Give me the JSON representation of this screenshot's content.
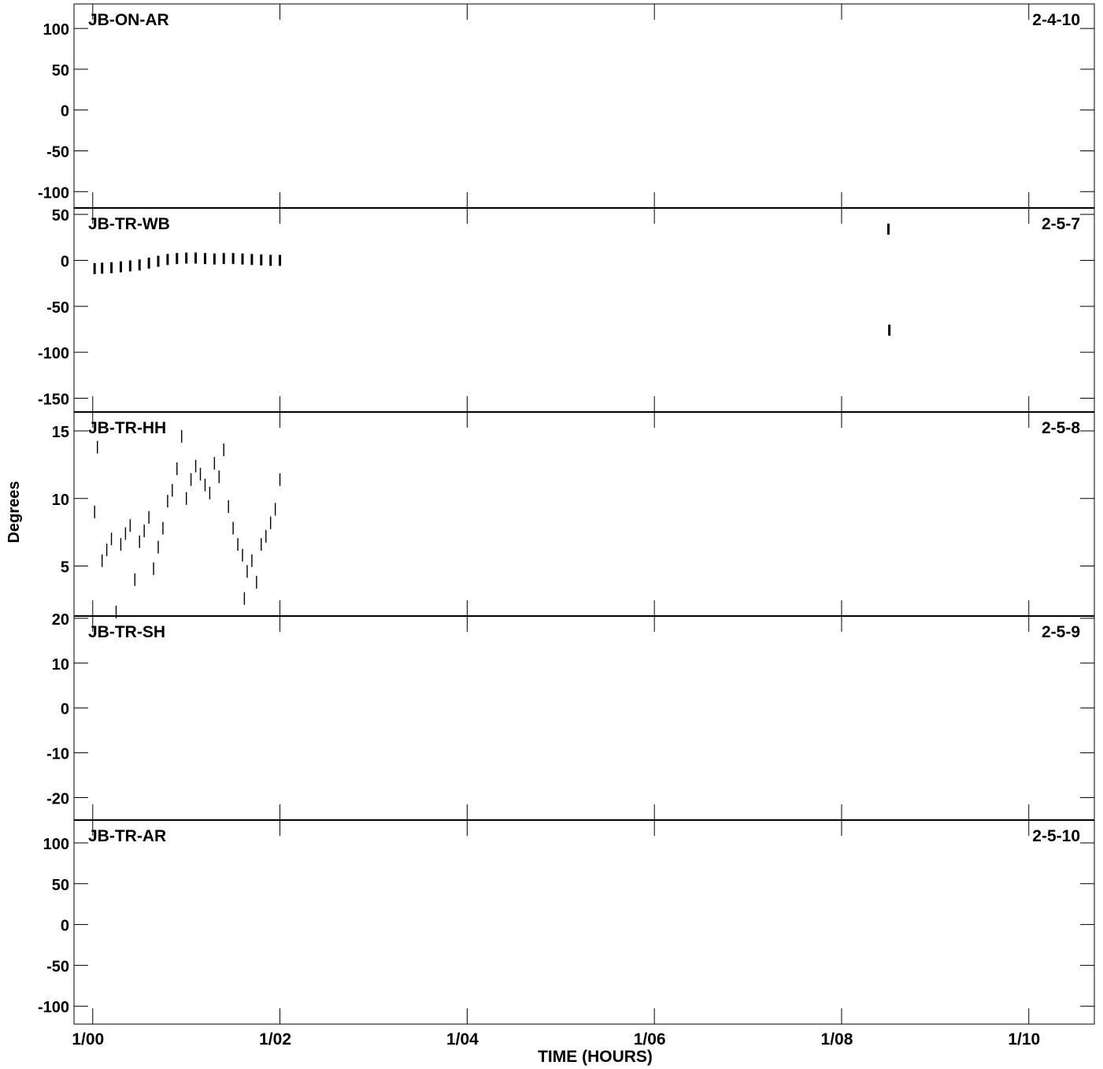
{
  "figure": {
    "ylabel": "Degrees",
    "xlabel": "TIME (HOURS)"
  },
  "colors": {
    "ink": "#000000",
    "background": "#ffffff"
  },
  "chart_data": [
    {
      "type": "scatter",
      "baseline": "JB-ON-AR",
      "baseline_id": "2-4-10",
      "ylim": [
        -120,
        130
      ],
      "yticks": [
        100,
        50,
        0,
        -50,
        -100
      ],
      "xlim": [
        -0.2,
        10.7
      ],
      "xticks": [
        0,
        2,
        4,
        6,
        8,
        10
      ],
      "xticklabels": [
        "1/00",
        "1/02",
        "1/04",
        "1/06",
        "1/08",
        "1/10"
      ],
      "points": []
    },
    {
      "type": "scatter",
      "baseline": "JB-TR-WB",
      "baseline_id": "2-5-7",
      "ylim": [
        -165,
        57
      ],
      "yticks": [
        50,
        0,
        -50,
        -100,
        -150
      ],
      "xlim": [
        -0.2,
        10.7
      ],
      "xticks": [
        0,
        2,
        4,
        6,
        8,
        10
      ],
      "xticklabels": [
        "1/00",
        "1/02",
        "1/04",
        "1/06",
        "1/08",
        "1/10"
      ],
      "points": [
        [
          0.02,
          -9
        ],
        [
          0.1,
          -8.5
        ],
        [
          0.2,
          -8
        ],
        [
          0.3,
          -7
        ],
        [
          0.4,
          -6
        ],
        [
          0.5,
          -5
        ],
        [
          0.6,
          -3
        ],
        [
          0.7,
          -1
        ],
        [
          0.8,
          1
        ],
        [
          0.9,
          2
        ],
        [
          1.0,
          2.5
        ],
        [
          1.1,
          2.5
        ],
        [
          1.2,
          2
        ],
        [
          1.3,
          1.5
        ],
        [
          1.4,
          2
        ],
        [
          1.5,
          2
        ],
        [
          1.6,
          1.5
        ],
        [
          1.7,
          1
        ],
        [
          1.8,
          0.5
        ],
        [
          1.9,
          0
        ],
        [
          2.0,
          0
        ],
        [
          8.5,
          34
        ],
        [
          8.51,
          -76
        ]
      ]
    },
    {
      "type": "scatter",
      "baseline": "JB-TR-HH",
      "baseline_id": "2-5-8",
      "ylim": [
        1.3,
        16.4
      ],
      "yticks": [
        15,
        10,
        5
      ],
      "xlim": [
        -0.2,
        10.7
      ],
      "xticks": [
        0,
        2,
        4,
        6,
        8,
        10
      ],
      "xticklabels": [
        "1/00",
        "1/02",
        "1/04",
        "1/06",
        "1/08",
        "1/10"
      ],
      "points": [
        [
          0.02,
          9.0
        ],
        [
          0.05,
          13.8
        ],
        [
          0.1,
          5.4
        ],
        [
          0.15,
          6.2
        ],
        [
          0.2,
          7.0
        ],
        [
          0.25,
          1.6
        ],
        [
          0.3,
          6.6
        ],
        [
          0.35,
          7.4
        ],
        [
          0.4,
          8.0
        ],
        [
          0.45,
          4.0
        ],
        [
          0.5,
          6.8
        ],
        [
          0.55,
          7.6
        ],
        [
          0.6,
          8.6
        ],
        [
          0.65,
          4.8
        ],
        [
          0.7,
          6.4
        ],
        [
          0.75,
          7.8
        ],
        [
          0.8,
          9.8
        ],
        [
          0.85,
          10.6
        ],
        [
          0.9,
          12.2
        ],
        [
          0.95,
          14.6
        ],
        [
          1.0,
          10.0
        ],
        [
          1.05,
          11.4
        ],
        [
          1.1,
          12.4
        ],
        [
          1.15,
          11.8
        ],
        [
          1.2,
          11.0
        ],
        [
          1.25,
          10.4
        ],
        [
          1.3,
          12.6
        ],
        [
          1.35,
          11.6
        ],
        [
          1.4,
          13.6
        ],
        [
          1.45,
          9.4
        ],
        [
          1.5,
          7.8
        ],
        [
          1.55,
          6.6
        ],
        [
          1.6,
          5.8
        ],
        [
          1.62,
          2.6
        ],
        [
          1.65,
          4.6
        ],
        [
          1.7,
          5.4
        ],
        [
          1.75,
          3.8
        ],
        [
          1.8,
          6.6
        ],
        [
          1.85,
          7.2
        ],
        [
          1.9,
          8.2
        ],
        [
          1.95,
          9.2
        ],
        [
          2.0,
          11.4
        ]
      ]
    },
    {
      "type": "scatter",
      "baseline": "JB-TR-SH",
      "baseline_id": "2-5-9",
      "ylim": [
        -25,
        20.5
      ],
      "yticks": [
        20,
        10,
        0,
        -10,
        -20
      ],
      "xlim": [
        -0.2,
        10.7
      ],
      "xticks": [
        0,
        2,
        4,
        6,
        8,
        10
      ],
      "xticklabels": [
        "1/00",
        "1/02",
        "1/04",
        "1/06",
        "1/08",
        "1/10"
      ],
      "points": []
    },
    {
      "type": "scatter",
      "baseline": "JB-TR-AR",
      "baseline_id": "2-5-10",
      "ylim": [
        -122,
        128
      ],
      "yticks": [
        100,
        50,
        0,
        -50,
        -100
      ],
      "xlim": [
        -0.2,
        10.7
      ],
      "xticks": [
        0,
        2,
        4,
        6,
        8,
        10
      ],
      "xticklabels": [
        "1/00",
        "1/02",
        "1/04",
        "1/06",
        "1/08",
        "1/10"
      ],
      "points": []
    }
  ]
}
